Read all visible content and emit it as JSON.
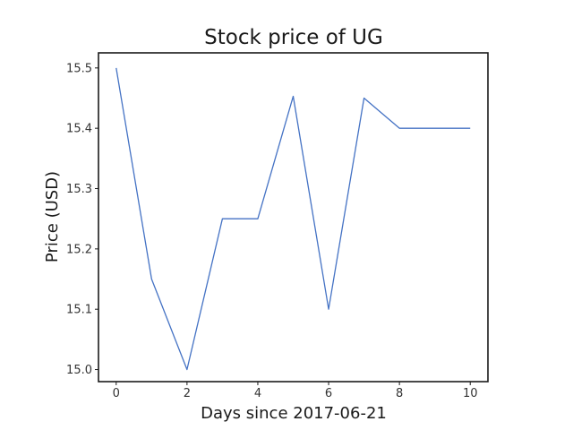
{
  "chart_data": {
    "type": "line",
    "title": "Stock price of UG",
    "xlabel": "Days since 2017-06-21",
    "ylabel": "Price (USD)",
    "x": [
      0,
      1,
      2,
      3,
      4,
      5,
      6,
      7,
      8,
      9,
      10
    ],
    "series": [
      {
        "values": [
          15.5,
          15.15,
          15.0,
          15.25,
          15.25,
          15.453,
          15.1,
          15.45,
          15.4,
          15.4,
          15.4
        ],
        "color": "#4472c4"
      }
    ],
    "xlim": [
      -0.5,
      10.5
    ],
    "ylim": [
      14.98,
      15.525
    ],
    "xticks": [
      0,
      2,
      4,
      6,
      8,
      10
    ],
    "yticks": [
      15.0,
      15.1,
      15.2,
      15.3,
      15.4,
      15.5
    ],
    "xtick_labels": [
      "0",
      "2",
      "4",
      "6",
      "8",
      "10"
    ],
    "ytick_labels": [
      "15.0",
      "15.1",
      "15.2",
      "15.3",
      "15.4",
      "15.5"
    ],
    "grid": false,
    "legend": false
  }
}
